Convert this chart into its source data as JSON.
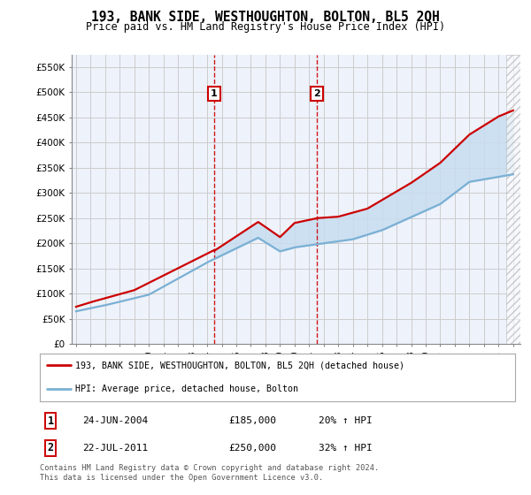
{
  "title": "193, BANK SIDE, WESTHOUGHTON, BOLTON, BL5 2QH",
  "subtitle": "Price paid vs. HM Land Registry's House Price Index (HPI)",
  "red_label": "193, BANK SIDE, WESTHOUGHTON, BOLTON, BL5 2QH (detached house)",
  "blue_label": "HPI: Average price, detached house, Bolton",
  "transaction1_date": "24-JUN-2004",
  "transaction1_price": 185000,
  "transaction1_pct": "20% ↑ HPI",
  "transaction2_date": "22-JUL-2011",
  "transaction2_price": 250000,
  "transaction2_pct": "32% ↑ HPI",
  "footnote": "Contains HM Land Registry data © Crown copyright and database right 2024.\nThis data is licensed under the Open Government Licence v3.0.",
  "ylim": [
    0,
    575000
  ],
  "yticks": [
    0,
    50000,
    100000,
    150000,
    200000,
    250000,
    300000,
    350000,
    400000,
    450000,
    500000,
    550000
  ],
  "background_color": "#ffffff",
  "plot_bg_color": "#eef2fb",
  "grid_color": "#cccccc",
  "red_color": "#cc0000",
  "blue_color": "#7ab0d4",
  "shade_color": "#c8ddf0"
}
